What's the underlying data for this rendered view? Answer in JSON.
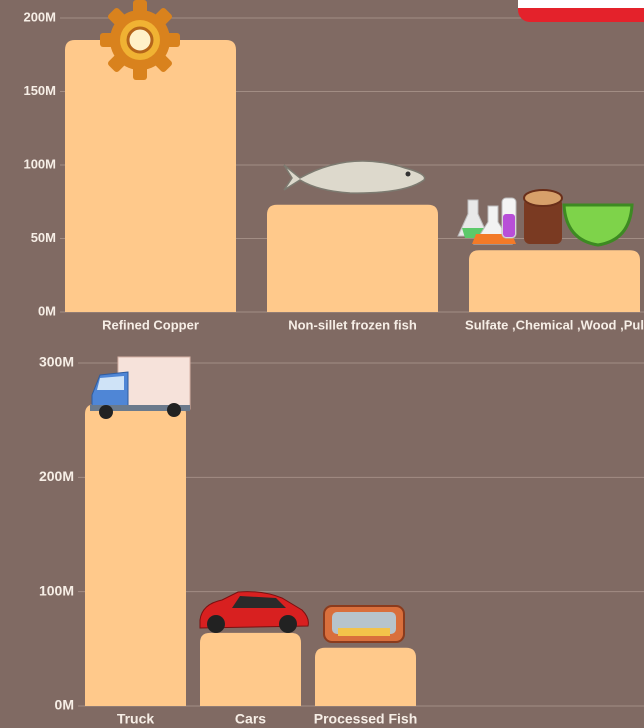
{
  "chart_data": [
    {
      "type": "bar",
      "categories": [
        "Refined Copper",
        "Non-sillet frozen fish",
        "Sulfate ,Chemical ,Wood ,Pul"
      ],
      "values": [
        185000000,
        73000000,
        42000000
      ],
      "color": "#ffc98b",
      "ylim": [
        0,
        200000000
      ],
      "yticks": [
        {
          "value": 0,
          "label": "0M"
        },
        {
          "value": 50000000,
          "label": "50M"
        },
        {
          "value": 100000000,
          "label": "100M"
        },
        {
          "value": 150000000,
          "label": "150M"
        },
        {
          "value": 200000000,
          "label": "200M"
        }
      ],
      "grid": true
    },
    {
      "type": "bar",
      "categories": [
        "Truck",
        "Cars",
        "Processed Fish"
      ],
      "values": [
        264000000,
        64000000,
        51000000
      ],
      "color": "#ffc98b",
      "ylim": [
        0,
        300000000
      ],
      "yticks": [
        {
          "value": 0,
          "label": "0M"
        },
        {
          "value": 100000000,
          "label": "100M"
        },
        {
          "value": 200000000,
          "label": "200M"
        },
        {
          "value": 300000000,
          "label": "300M"
        }
      ],
      "grid": true
    }
  ]
}
